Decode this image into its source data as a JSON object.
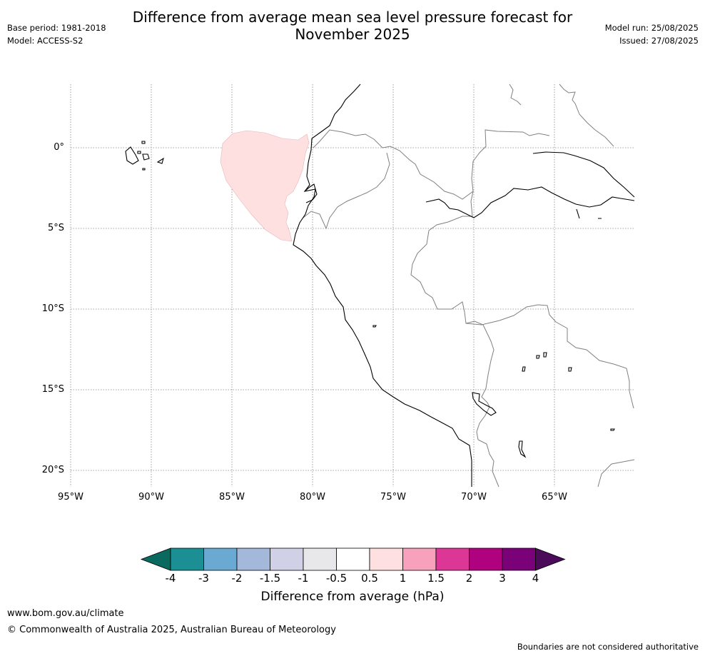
{
  "title": "Difference from average mean sea level pressure forecast for November 2025",
  "title_line1": "Difference from average mean sea level pressure forecast for",
  "title_line2": "November 2025",
  "base_period": "Base period: 1981-2018",
  "model": "Model: ACCESS-S2",
  "model_run": "Model run: 25/08/2025",
  "issued": "Issued: 27/08/2025",
  "lat_ticks": [
    "0°",
    "5°S",
    "10°S",
    "15°S",
    "20°S"
  ],
  "lon_ticks": [
    "95°W",
    "90°W",
    "85°W",
    "80°W",
    "75°W",
    "70°W",
    "65°W"
  ],
  "colorbar": {
    "labels": [
      "-4",
      "-3",
      "-2",
      "-1.5",
      "-1",
      "-0.5",
      "0.5",
      "1",
      "1.5",
      "2",
      "3",
      "4"
    ],
    "colors": [
      "#1b8f93",
      "#6aa9d2",
      "#a4b8da",
      "#d0d0e6",
      "#e8e7ea",
      "#ffffff",
      "#fde0df",
      "#f7a1bd",
      "#dc3797",
      "#b0027f",
      "#7a0177"
    ],
    "under_color": "#0b6a60",
    "over_color": "#4b0a5a",
    "title": "Difference from average (hPa)"
  },
  "anomaly_fill_color": "#fde0df",
  "website": "www.bom.gov.au/climate",
  "copyright": "© Commonwealth of Australia 2025, Australian Bureau of Meteorology",
  "disclaimer": "Boundaries are not considered authoritative"
}
